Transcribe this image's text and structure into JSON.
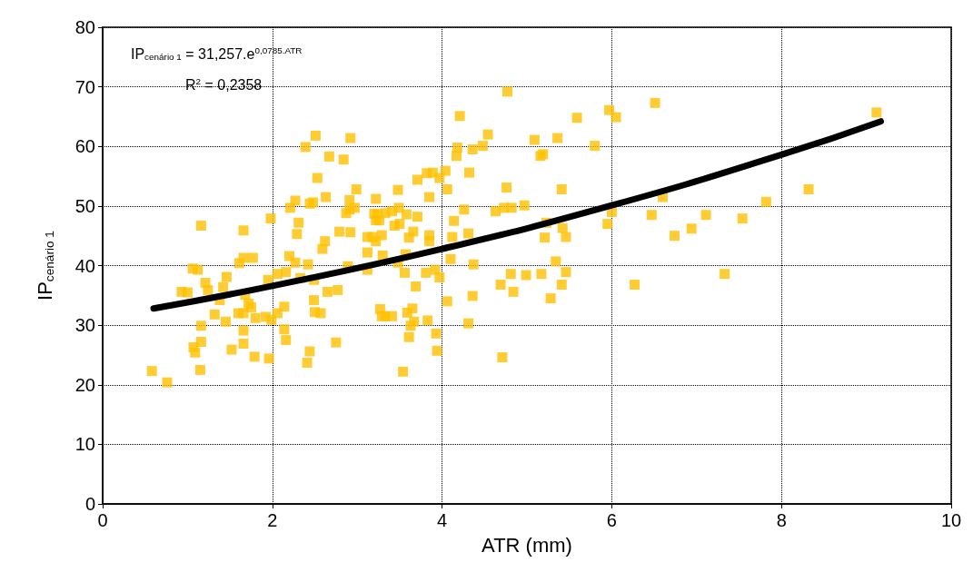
{
  "chart_data": {
    "type": "scatter",
    "xlabel": "ATR (mm)",
    "ylabel": "IP$_{cenário 1}$",
    "annotations": [
      "IP$_{cenário 1}$ = 31,257.e$^{0,0785.ATR}$",
      "R$^{2}$ = 0,2358"
    ],
    "xlim": [
      0,
      10
    ],
    "xticks": [
      0,
      2,
      4,
      6,
      8,
      10
    ],
    "ylim": [
      0,
      80
    ],
    "yticks": [
      0,
      10,
      20,
      30,
      40,
      50,
      60,
      70,
      80
    ],
    "grid": true,
    "line_style": "solid",
    "series": [
      {
        "marker": "square",
        "color": "#ffc000",
        "x": [
          0.58,
          0.76,
          1.15,
          1.09,
          1.07,
          1.16,
          1.16,
          1.32,
          1.45,
          1.52,
          1.66,
          1.66,
          1.79,
          1.96,
          0.93,
          1.0,
          1.16,
          1.06,
          1.12,
          1.21,
          1.24,
          1.38,
          1.42,
          1.46,
          1.61,
          1.66,
          1.77,
          1.66,
          1.68,
          1.6,
          1.72,
          1.75,
          1.8,
          1.66,
          1.92,
          1.99,
          2.06,
          2.14,
          2.14,
          2.16,
          2.41,
          2.44,
          2.75,
          1.95,
          2.06,
          2.16,
          2.2,
          2.27,
          2.33,
          2.42,
          1.98,
          2.21,
          2.27,
          2.31,
          2.29,
          2.39,
          2.51,
          2.53,
          2.44,
          2.48,
          2.49,
          2.57,
          2.5,
          2.49,
          2.63,
          2.62,
          2.59,
          2.67,
          2.79,
          2.77,
          2.65,
          2.84,
          2.92,
          2.99,
          2.91,
          2.91,
          2.87,
          2.97,
          2.92,
          2.89,
          3.12,
          3.12,
          3.18,
          3.22,
          3.22,
          3.2,
          3.22,
          3.27,
          3.29,
          3.12,
          3.24,
          3.26,
          3.33,
          3.41,
          3.49,
          3.58,
          3.48,
          3.29,
          3.44,
          3.5,
          3.66,
          3.61,
          3.71,
          3.71,
          3.82,
          3.89,
          3.97,
          4.04,
          3.85,
          4.06,
          4.14,
          3.85,
          3.85,
          4.12,
          4.31,
          4.26,
          4.32,
          4.17,
          4.18,
          4.21,
          4.36,
          4.48,
          4.54,
          4.77,
          5.09,
          5.16,
          5.19,
          5.36,
          5.59,
          5.8,
          5.97,
          6.05,
          6.51,
          4.76,
          5.41,
          4.63,
          4.73,
          4.82,
          4.97,
          5.23,
          5.21,
          5.42,
          5.46,
          6.0,
          5.95,
          6.47,
          3.3,
          3.57,
          3.56,
          3.48,
          3.81,
          3.92,
          3.97,
          3.69,
          4.1,
          4.37,
          4.06,
          4.36,
          4.31,
          4.69,
          4.81,
          4.84,
          4.99,
          5.17,
          5.34,
          5.46,
          5.41,
          5.28,
          6.27,
          3.33,
          3.41,
          3.59,
          3.65,
          3.67,
          3.63,
          3.83,
          3.61,
          3.93,
          3.94,
          3.54,
          4.71,
          6.6,
          6.74,
          6.94,
          7.11,
          7.33,
          7.54,
          7.82,
          8.32,
          9.12
        ],
        "values": [
          22.3,
          20.4,
          22.5,
          25.4,
          26.3,
          27.2,
          29.9,
          31.8,
          30.6,
          25.9,
          26.9,
          29.1,
          24.7,
          24.4,
          35.6,
          35.5,
          46.7,
          39.5,
          39.3,
          37.1,
          35.9,
          34.2,
          36.4,
          38.1,
          40.4,
          41.3,
          41.3,
          45.9,
          35.1,
          32,
          33.6,
          33,
          31.2,
          32,
          31.4,
          30.9,
          32,
          33.1,
          29.3,
          27.5,
          23.7,
          25.6,
          27.1,
          37.6,
          38.6,
          38.9,
          41.6,
          40.5,
          37.9,
          40.2,
          47.9,
          49.7,
          50.9,
          47.2,
          45.3,
          59.9,
          61.8,
          54.7,
          50.4,
          50.6,
          34.2,
          32,
          32.2,
          37.6,
          51.5,
          44.1,
          42.8,
          58.3,
          45.7,
          35.9,
          35.6,
          57.8,
          61.4,
          52.8,
          51,
          49.4,
          48.8,
          49.7,
          45.6,
          39.9,
          42.2,
          44.8,
          44.8,
          44.1,
          51.2,
          48.7,
          47.6,
          32.7,
          31.5,
          39.3,
          48.6,
          47.6,
          48.8,
          49.1,
          49.7,
          48.6,
          52.7,
          45.1,
          46.7,
          47,
          45.7,
          44.7,
          48.2,
          54.4,
          55.5,
          55.6,
          54.7,
          55.9,
          51.5,
          52.8,
          47.5,
          45.1,
          44.1,
          44.8,
          45.4,
          49.4,
          55.6,
          58.4,
          59.8,
          65.1,
          59.5,
          60.1,
          62,
          69.2,
          61.1,
          58.4,
          58.7,
          61.4,
          64.8,
          60.1,
          66.1,
          64.9,
          67.3,
          53.1,
          52.8,
          49.1,
          49.7,
          49.7,
          50.1,
          47.2,
          44.7,
          46.3,
          44.8,
          49,
          47,
          48.5,
          41.7,
          41.9,
          38.8,
          40.5,
          38.8,
          39.3,
          38,
          36.5,
          41.1,
          40.2,
          34,
          34.9,
          30.3,
          36.8,
          38.6,
          35.6,
          38.4,
          38.6,
          40.7,
          38.9,
          36.8,
          34.5,
          36.8,
          31.5,
          31.5,
          32.1,
          32.8,
          30.6,
          29.9,
          30.8,
          28,
          28.6,
          25.7,
          22.2,
          24.6,
          51.5,
          45,
          46.2,
          48.5,
          38.6,
          47.9,
          50.7,
          52.8,
          65.7
        ]
      },
      {
        "type": "line",
        "marker": "none",
        "color": "#000000",
        "x": [
          0.6,
          2,
          4,
          6,
          8,
          9.17
        ],
        "values": [
          32.8,
          36.6,
          42.8,
          50.1,
          58.6,
          64.2
        ]
      }
    ]
  }
}
